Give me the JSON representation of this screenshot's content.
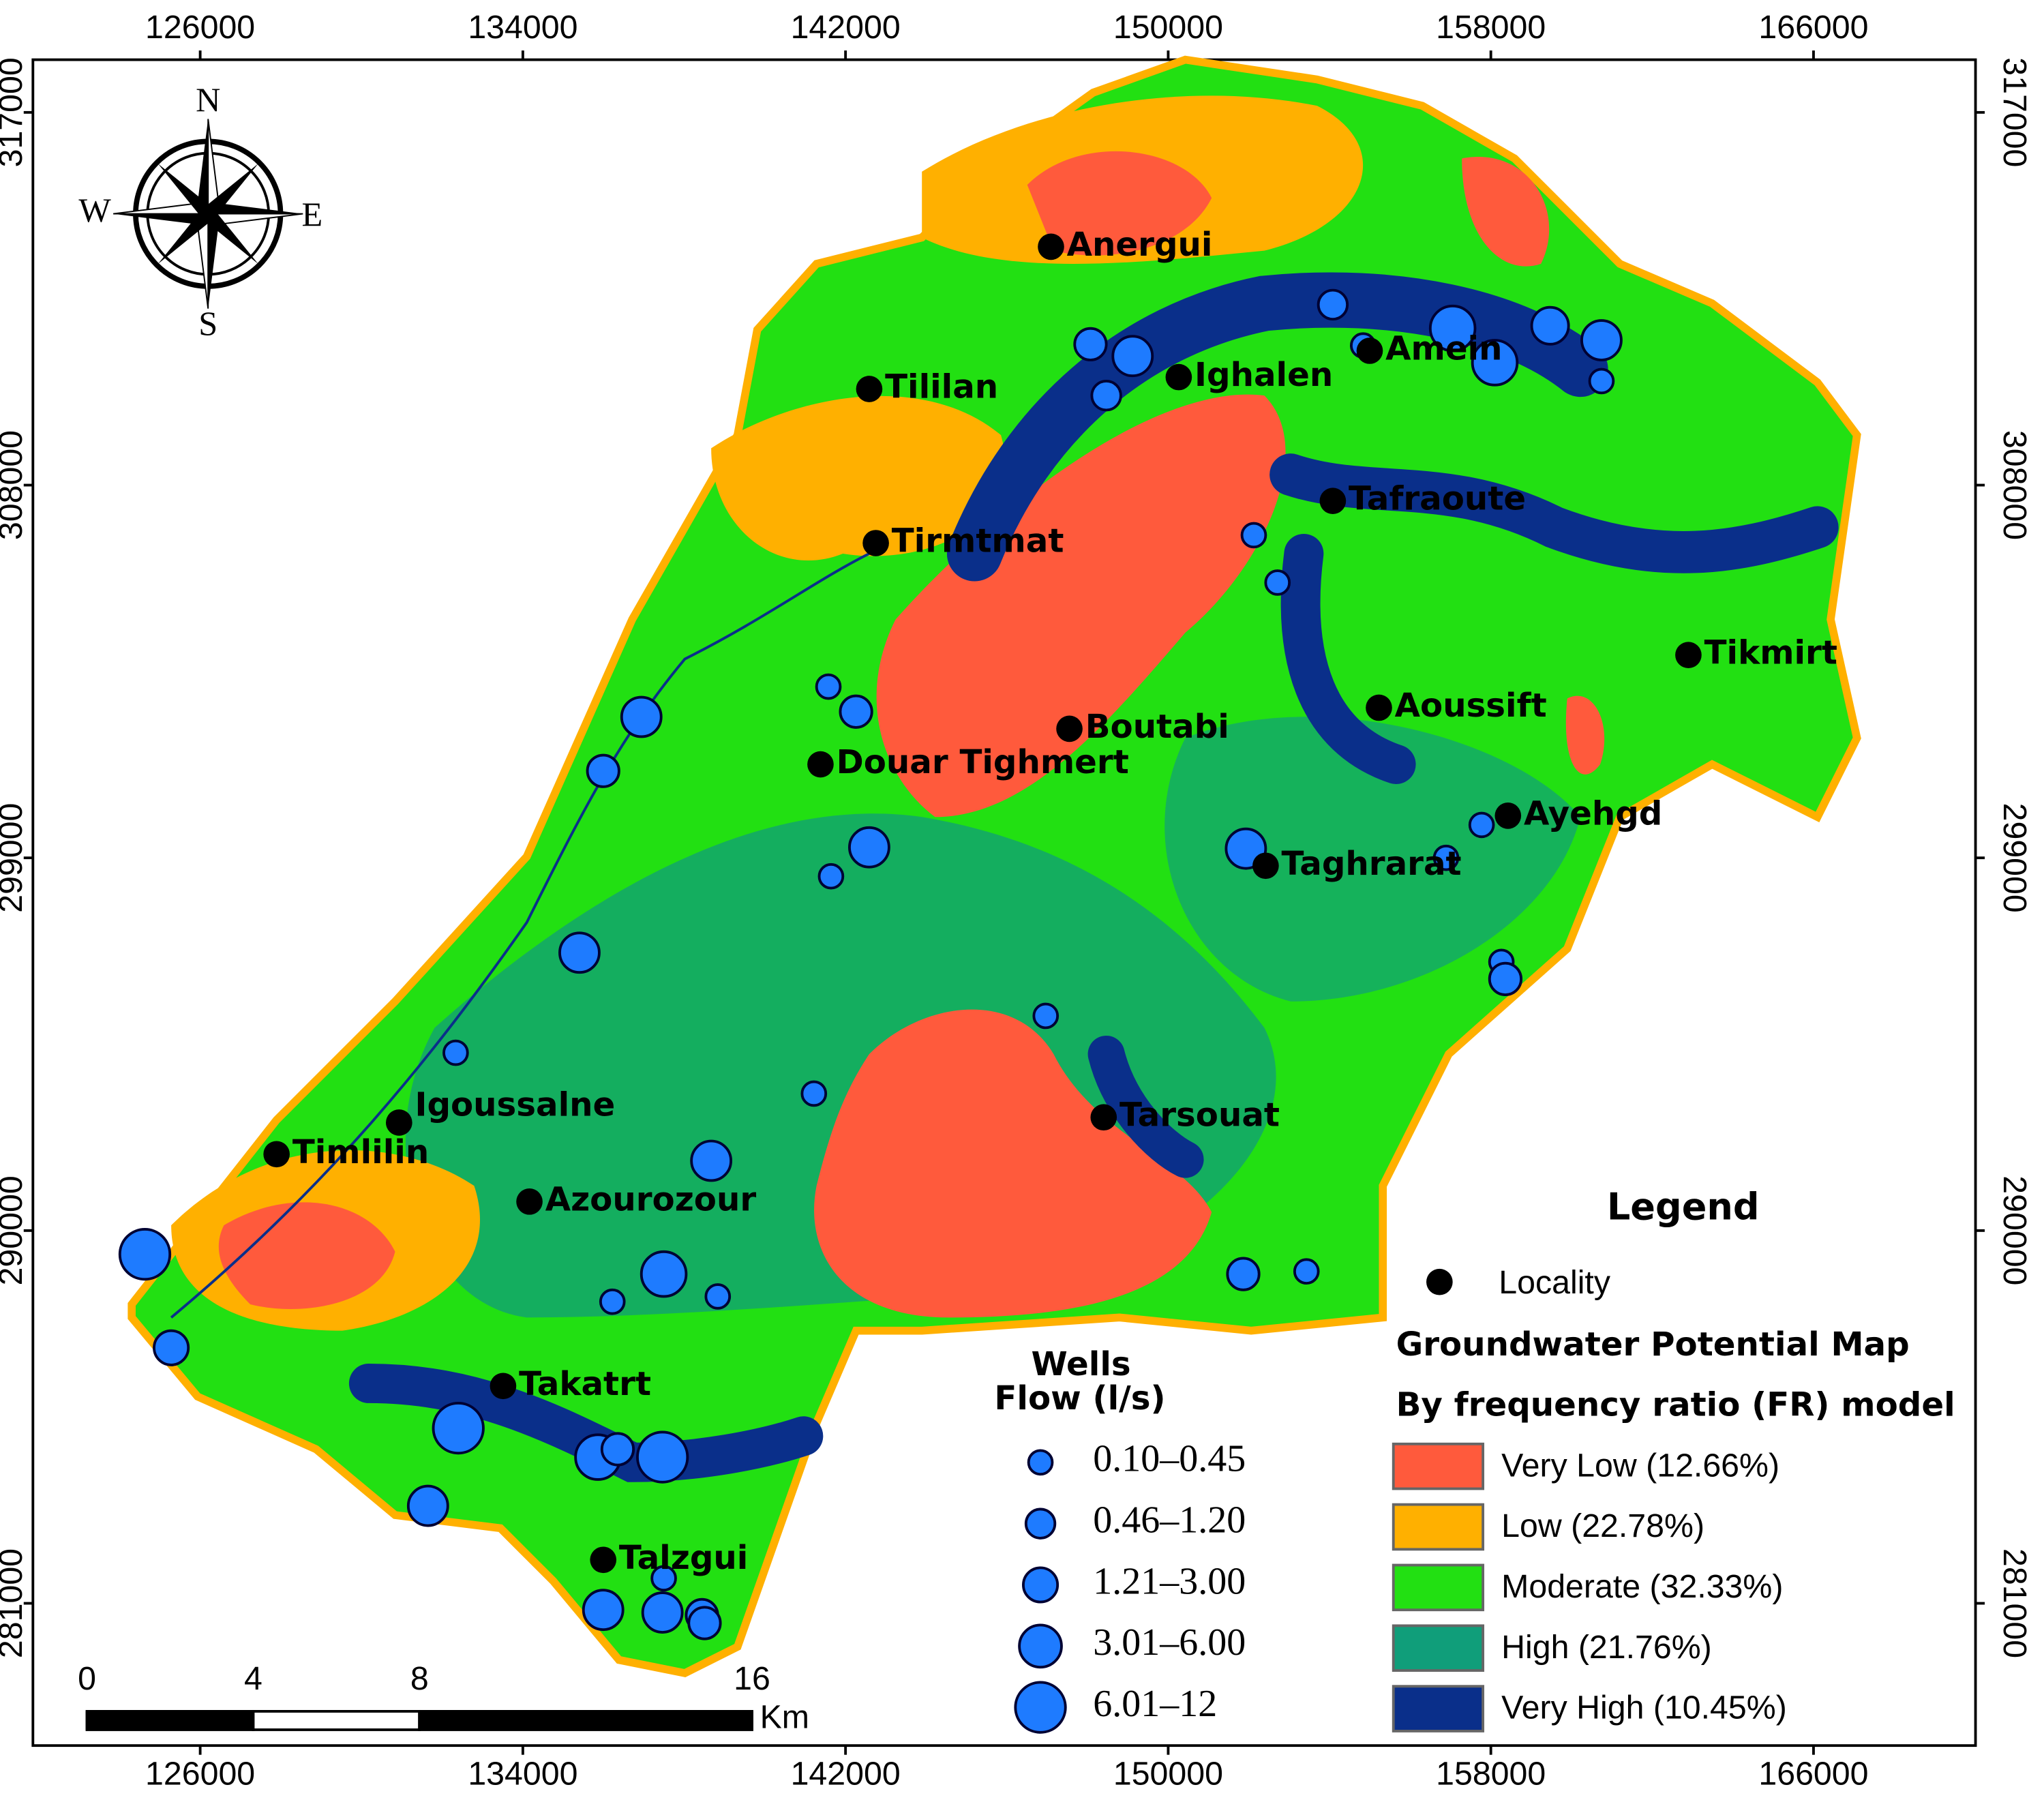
{
  "map": {
    "x_ticks": [
      126000,
      134000,
      142000,
      150000,
      158000,
      166000
    ],
    "y_ticks": [
      317000,
      308000,
      299000,
      290000,
      281000
    ],
    "compass": [
      "N",
      "E",
      "S",
      "W"
    ],
    "localities": [
      "Anergui",
      "Tililan",
      "Ighalen",
      "Amein",
      "Tafraoute",
      "Tirmtmat",
      "Tikmirt",
      "Aoussift",
      "Boutabi",
      "Douar Tighmert",
      "Ayehgd",
      "Taghrarat",
      "Igoussalne",
      "Timlilin",
      "Tarsouat",
      "Azourozour",
      "Takatrt",
      "Talzgui"
    ],
    "scale_bar": {
      "ticks": [
        0,
        4,
        8,
        16
      ],
      "unit": "Km"
    },
    "wells": {
      "title": "Wells",
      "subtitle": "Flow (l/s)",
      "classes": [
        "0.10–0.45",
        "0.46–1.20",
        "1.21–3.00",
        "3.01–6.00",
        "6.01–12"
      ],
      "color": "#1e7bff"
    },
    "legend": {
      "title": "Legend",
      "locality": "Locality",
      "potential_title": "Groundwater Potential Map",
      "potential_subtitle": "By frequency ratio (FR) model",
      "classes": [
        {
          "label": "Very Low (12.66%)",
          "color": "#ff5a3c"
        },
        {
          "label": "Low (22.78%)",
          "color": "#ffb000"
        },
        {
          "label": "Moderate (32.33%)",
          "color": "#22e012"
        },
        {
          "label": "High (21.76%)",
          "color": "#109e7a"
        },
        {
          "label": "Very High (10.45%)",
          "color": "#0a2f8a"
        }
      ]
    }
  }
}
